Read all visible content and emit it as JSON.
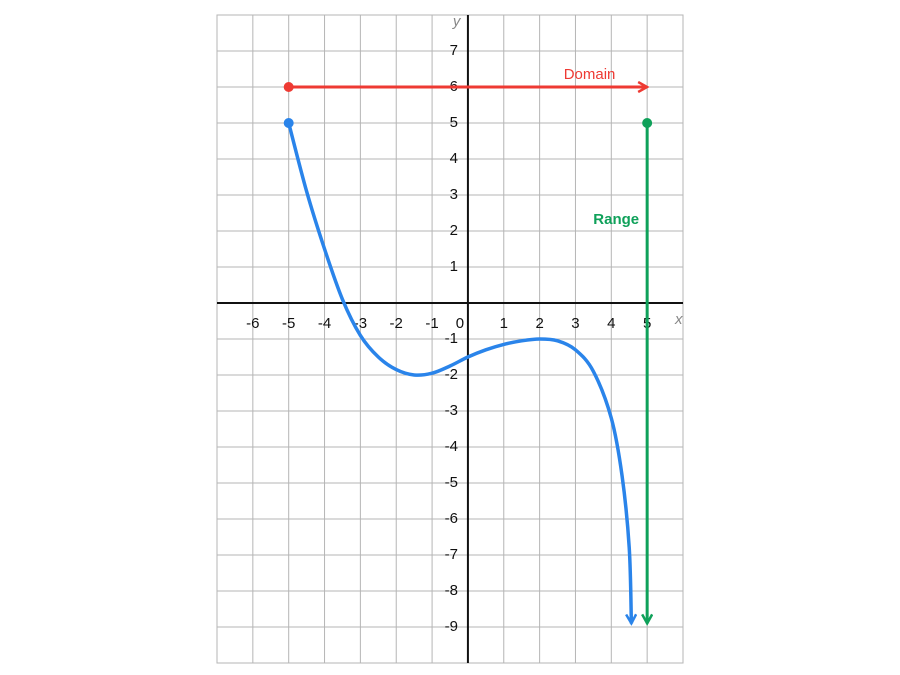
{
  "chart_data": {
    "type": "line",
    "x_label": "x",
    "y_label": "y",
    "xlim": [
      -7,
      6
    ],
    "ylim": [
      -10,
      8
    ],
    "xticks": [
      -6,
      -5,
      -4,
      -3,
      -2,
      -1,
      0,
      1,
      2,
      3,
      4,
      5
    ],
    "yticks": [
      -9,
      -8,
      -7,
      -6,
      -5,
      -4,
      -3,
      -2,
      -1,
      1,
      2,
      3,
      4,
      5,
      6,
      7
    ],
    "grid": true,
    "series": [
      {
        "color": "#2a84ea",
        "x": [
          -5,
          -4.5,
          -4,
          -3.5,
          -3,
          -2.5,
          -2,
          -1.5,
          -1,
          -0.5,
          0,
          0.5,
          1,
          1.5,
          2,
          2.5,
          3,
          3.5,
          4,
          4.3,
          4.5,
          4.56
        ],
        "values": [
          5,
          3.1,
          1.5,
          0.1,
          -0.9,
          -1.5,
          -1.85,
          -2,
          -1.95,
          -1.75,
          -1.5,
          -1.3,
          -1.15,
          -1.05,
          -1,
          -1.05,
          -1.3,
          -1.9,
          -3.2,
          -4.8,
          -6.8,
          -8.9
        ]
      }
    ],
    "domain": {
      "label": "Domain",
      "color": "#ee3a33",
      "x": [
        -5,
        5
      ],
      "y": 6
    },
    "range": {
      "label": "Range",
      "color": "#0fa15a",
      "x": 5,
      "y": [
        5,
        -8.9
      ]
    }
  }
}
